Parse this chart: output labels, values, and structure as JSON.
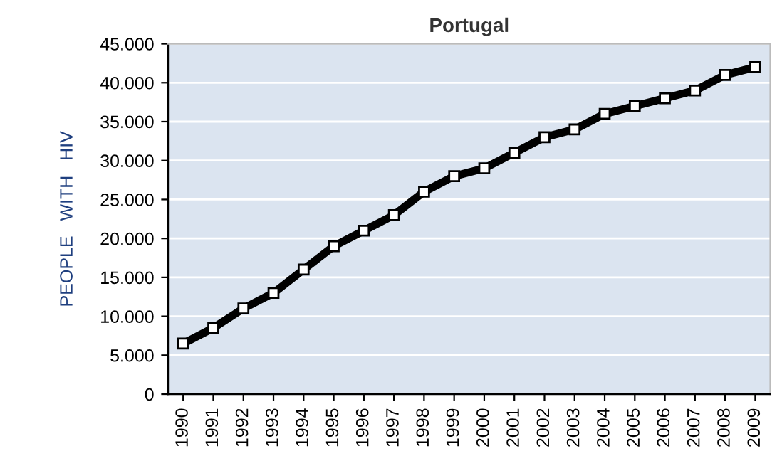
{
  "chart_data": {
    "type": "line",
    "title": "Portugal",
    "ylabel": "PEOPLE   WITH   HIV",
    "categories": [
      "1990",
      "1991",
      "1992",
      "1993",
      "1994",
      "1995",
      "1996",
      "1997",
      "1998",
      "1999",
      "2000",
      "2001",
      "2002",
      "2003",
      "2004",
      "2005",
      "2006",
      "2007",
      "2008",
      "2009"
    ],
    "series": [
      {
        "color": "#000000",
        "values": [
          6500,
          8500,
          11000,
          13000,
          16000,
          19000,
          21000,
          23000,
          26000,
          28000,
          29000,
          31000,
          33000,
          34000,
          36000,
          37000,
          38000,
          39000,
          41000,
          42000
        ]
      }
    ],
    "ylim": [
      0,
      45000
    ],
    "yticks": [
      0,
      {
        "value": 5000,
        "label": "5.000"
      },
      {
        "value": 10000,
        "label": "10.000"
      },
      {
        "value": 15000,
        "label": "15.000"
      },
      {
        "value": 20000,
        "label": "20.000"
      },
      {
        "value": 25000,
        "label": "25.000"
      },
      {
        "value": 30000,
        "label": "30.000"
      },
      {
        "value": 35000,
        "label": "35.000"
      },
      {
        "value": 40000,
        "label": "40.000"
      },
      {
        "value": 45000,
        "label": "45.000"
      }
    ],
    "grid": "y",
    "marker": "square",
    "line_style": "solid"
  }
}
